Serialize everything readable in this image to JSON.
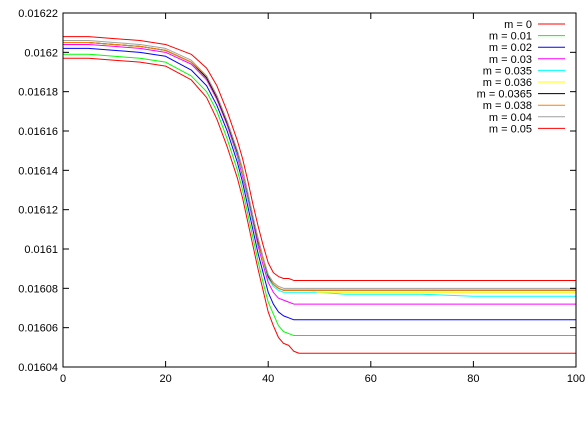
{
  "chart_data": {
    "type": "line",
    "title": "",
    "xlabel": "",
    "ylabel": "",
    "xlim": [
      0,
      100
    ],
    "ylim": [
      0.01604,
      0.01622
    ],
    "x_ticks": [
      0,
      20,
      40,
      60,
      80,
      100
    ],
    "x_tick_labels": [
      "0",
      "20",
      "40",
      "60",
      "80",
      "100"
    ],
    "y_ticks": [
      0.01604,
      0.01606,
      0.01608,
      0.0161,
      0.01612,
      0.01614,
      0.01616,
      0.01618,
      0.0162,
      0.01622
    ],
    "y_tick_labels": [
      "0.01604",
      "0.01606",
      "0.01608",
      "0.0161",
      "0.01612",
      "0.01614",
      "0.01616",
      "0.01618",
      "0.0162",
      "0.01622"
    ],
    "grid": false,
    "legend_position": "top-right",
    "x": [
      0,
      5,
      10,
      15,
      20,
      25,
      28,
      30,
      32,
      34,
      35,
      36,
      37,
      38,
      39,
      40,
      41,
      42,
      43,
      44,
      45,
      46,
      47,
      48,
      50,
      55,
      60,
      70,
      80,
      90,
      100
    ],
    "series": [
      {
        "name": "m = 0",
        "color": "#ff0000",
        "values": [
          0.016197,
          0.016197,
          0.016196,
          0.016195,
          0.016193,
          0.016186,
          0.016177,
          0.016166,
          0.016152,
          0.016136,
          0.016126,
          0.016114,
          0.016102,
          0.01609,
          0.016079,
          0.016068,
          0.016061,
          0.016055,
          0.016052,
          0.016051,
          0.016048,
          0.016047,
          0.016047,
          0.016047,
          0.016047,
          0.016047,
          0.016047,
          0.016047,
          0.016047,
          0.016047,
          0.016047
        ]
      },
      {
        "name": "m = 0.01",
        "color": "#00ff00",
        "values": [
          0.016199,
          0.016199,
          0.016198,
          0.016197,
          0.016195,
          0.016188,
          0.01618,
          0.01617,
          0.016156,
          0.01614,
          0.01613,
          0.016118,
          0.016106,
          0.016094,
          0.016083,
          0.016073,
          0.016067,
          0.016061,
          0.016058,
          0.016057,
          0.016056,
          0.016056,
          0.016056,
          0.016056,
          0.016056,
          0.016056,
          0.016056,
          0.016056,
          0.016056,
          0.016056,
          0.016056
        ]
      },
      {
        "name": "m = 0.02",
        "color": "#0000ff",
        "values": [
          0.016202,
          0.016202,
          0.016201,
          0.0162,
          0.016198,
          0.016191,
          0.016183,
          0.016173,
          0.01616,
          0.016144,
          0.016134,
          0.016122,
          0.01611,
          0.016098,
          0.016088,
          0.016078,
          0.016072,
          0.016068,
          0.016066,
          0.016065,
          0.016064,
          0.016064,
          0.016064,
          0.016064,
          0.016064,
          0.016064,
          0.016064,
          0.016064,
          0.016064,
          0.016064,
          0.016064
        ]
      },
      {
        "name": "m = 0.03",
        "color": "#ff00ff",
        "values": [
          0.016204,
          0.016204,
          0.016203,
          0.016202,
          0.0162,
          0.016194,
          0.016186,
          0.016176,
          0.016163,
          0.016147,
          0.016137,
          0.016126,
          0.016114,
          0.016102,
          0.016092,
          0.016083,
          0.016078,
          0.016075,
          0.016074,
          0.016073,
          0.016072,
          0.016072,
          0.016072,
          0.016072,
          0.016072,
          0.016072,
          0.016072,
          0.016072,
          0.016072,
          0.016072,
          0.016072
        ]
      },
      {
        "name": "m = 0.035",
        "color": "#00ffff",
        "values": [
          0.016205,
          0.016205,
          0.016204,
          0.016203,
          0.016201,
          0.016195,
          0.016187,
          0.016177,
          0.016164,
          0.016148,
          0.016139,
          0.016127,
          0.016115,
          0.016104,
          0.016094,
          0.016085,
          0.016081,
          0.016079,
          0.016078,
          0.016078,
          0.016078,
          0.016078,
          0.016078,
          0.016078,
          0.016078,
          0.016077,
          0.016077,
          0.016077,
          0.016076,
          0.016076,
          0.016076
        ]
      },
      {
        "name": "m = 0.036",
        "color": "#ffff00",
        "values": [
          0.016205,
          0.016205,
          0.016204,
          0.016203,
          0.016201,
          0.016195,
          0.016187,
          0.016177,
          0.016164,
          0.016149,
          0.016139,
          0.016128,
          0.016116,
          0.016104,
          0.016094,
          0.016086,
          0.016082,
          0.01608,
          0.016079,
          0.016079,
          0.016079,
          0.016079,
          0.016079,
          0.016079,
          0.016078,
          0.016078,
          0.016078,
          0.016078,
          0.016078,
          0.016078,
          0.016078
        ]
      },
      {
        "name": "m = 0.0365",
        "color": "#000000",
        "values": [
          0.016205,
          0.016205,
          0.016204,
          0.016203,
          0.016201,
          0.016195,
          0.016187,
          0.016177,
          0.016164,
          0.016149,
          0.01614,
          0.016128,
          0.016116,
          0.016104,
          0.016095,
          0.016086,
          0.016082,
          0.01608,
          0.016079,
          0.016079,
          0.016079,
          0.016079,
          0.016079,
          0.016079,
          0.016079,
          0.016079,
          0.016079,
          0.016079,
          0.016079,
          0.016079,
          0.016079
        ]
      },
      {
        "name": "m = 0.038",
        "color": "#ff8000",
        "values": [
          0.016205,
          0.016205,
          0.016204,
          0.016203,
          0.016201,
          0.016195,
          0.016188,
          0.016178,
          0.016165,
          0.01615,
          0.01614,
          0.016129,
          0.016117,
          0.016105,
          0.016095,
          0.016087,
          0.016082,
          0.01608,
          0.016079,
          0.016079,
          0.016079,
          0.016079,
          0.016079,
          0.016079,
          0.016079,
          0.016079,
          0.016079,
          0.016079,
          0.016079,
          0.016079,
          0.016079
        ]
      },
      {
        "name": "m = 0.04",
        "color": "#a0a0a0",
        "values": [
          0.016206,
          0.016206,
          0.016205,
          0.016204,
          0.016202,
          0.016196,
          0.016188,
          0.016178,
          0.016165,
          0.01615,
          0.016141,
          0.016129,
          0.016117,
          0.016106,
          0.016096,
          0.016087,
          0.016083,
          0.016081,
          0.01608,
          0.01608,
          0.01608,
          0.01608,
          0.01608,
          0.01608,
          0.01608,
          0.01608,
          0.01608,
          0.01608,
          0.01608,
          0.01608,
          0.01608
        ]
      },
      {
        "name": "m = 0.05",
        "color": "#ff0000",
        "values": [
          0.016208,
          0.016208,
          0.016207,
          0.016206,
          0.016204,
          0.016199,
          0.016192,
          0.016183,
          0.01617,
          0.016155,
          0.016146,
          0.016135,
          0.016123,
          0.016112,
          0.016102,
          0.016093,
          0.016088,
          0.016086,
          0.016085,
          0.016085,
          0.016084,
          0.016084,
          0.016084,
          0.016084,
          0.016084,
          0.016084,
          0.016084,
          0.016084,
          0.016084,
          0.016084,
          0.016084
        ]
      }
    ]
  }
}
